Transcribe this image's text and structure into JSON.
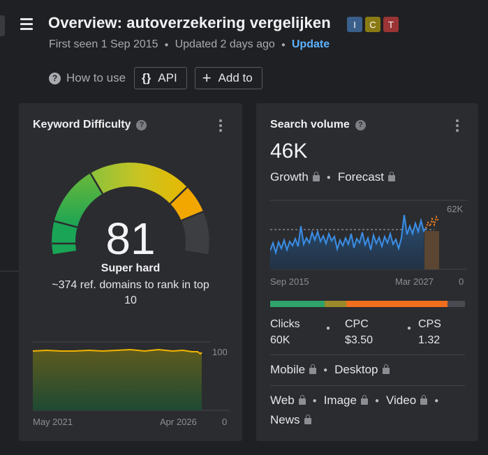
{
  "header": {
    "title": "Overview: autoverzekering vergelijken",
    "badges": [
      {
        "letter": "I",
        "color": "#3a5f8a"
      },
      {
        "letter": "C",
        "color": "#8a7a14"
      },
      {
        "letter": "T",
        "color": "#9b3434"
      }
    ],
    "first_seen": "First seen 1 Sep 2015",
    "updated": "Updated 2 days ago",
    "update_link": "Update"
  },
  "toolbar": {
    "how_to_use": "How to use",
    "api_icon": "{}",
    "api_label": "API",
    "add_icon": "+",
    "add_label": "Add to"
  },
  "keyword_difficulty": {
    "title": "Keyword Difficulty",
    "value": "81",
    "label": "Super hard",
    "description": "~374 ref. domains to rank in top 10",
    "chart": {
      "x_start": "May 2021",
      "x_end": "Apr 2026",
      "y_max": "100",
      "y_min": "0"
    }
  },
  "search_volume": {
    "title": "Search volume",
    "value": "46K",
    "growth": "Growth",
    "forecast": "Forecast",
    "chart": {
      "x_start": "Sep 2015",
      "x_end": "Mar 2027",
      "y_max": "62K",
      "y_min": "0"
    },
    "intent_colors": [
      "#2fa36b",
      "#9b8a2a",
      "#f06f1d",
      "#4a4b50"
    ],
    "clicks_label": "Clicks",
    "clicks_value": "60K",
    "cpc_label": "CPC",
    "cpc_value": "$3.50",
    "cps_label": "CPS",
    "cps_value": "1.32",
    "mobile": "Mobile",
    "desktop": "Desktop",
    "serp": [
      "Web",
      "Image",
      "Video",
      "News"
    ]
  }
}
